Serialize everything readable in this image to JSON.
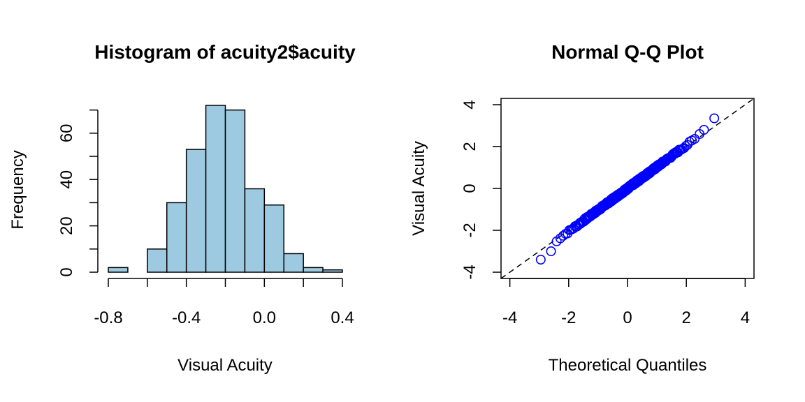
{
  "chart_data": [
    {
      "type": "bar",
      "title": "Histogram of acuity2$acuity",
      "xlabel": "Visual Acuity",
      "ylabel": "Frequency",
      "bin_edges": [
        -0.8,
        -0.7,
        -0.6,
        -0.5,
        -0.4,
        -0.3,
        -0.2,
        -0.1,
        0.0,
        0.1,
        0.2,
        0.3,
        0.4
      ],
      "values": [
        2,
        0,
        10,
        30,
        53,
        72,
        70,
        36,
        29,
        8,
        2,
        1
      ],
      "xlim": [
        -0.8,
        0.4
      ],
      "ylim": [
        0,
        72
      ],
      "x_ticks": [
        -0.8,
        -0.4,
        0.0,
        0.4
      ],
      "x_tick_labels": [
        "-0.8",
        "-0.4",
        "0.0",
        "0.4"
      ],
      "y_ticks": [
        0,
        20,
        40,
        60
      ],
      "y_tick_labels": [
        "0",
        "20",
        "40",
        "60"
      ],
      "bar_color": "#9ecae1",
      "grid": false
    },
    {
      "type": "scatter",
      "title": "Normal Q-Q Plot",
      "xlabel": "Theoretical Quantiles",
      "ylabel": "Visual Acuity",
      "xlim": [
        -4.3,
        4.3
      ],
      "ylim": [
        -4.3,
        4.3
      ],
      "x_ticks": [
        -4,
        -2,
        0,
        2,
        4
      ],
      "x_tick_labels": [
        "-4",
        "-2",
        "0",
        "2",
        "4"
      ],
      "y_ticks": [
        -4,
        -2,
        0,
        2,
        4
      ],
      "y_tick_labels": [
        "-4",
        "-2",
        "0",
        "2",
        "4"
      ],
      "point_color": "#0000ff",
      "reference_line": {
        "slope": 1,
        "intercept": 0,
        "style": "dashed",
        "color": "#000000"
      },
      "sample_size": 313,
      "extreme_points": [
        {
          "x": -2.95,
          "y": -3.4
        },
        {
          "x": -2.6,
          "y": -3.0
        },
        {
          "x": 2.95,
          "y": 3.35
        },
        {
          "x": 2.6,
          "y": 2.8
        },
        {
          "x": 2.45,
          "y": 2.6
        }
      ],
      "grid": false
    }
  ]
}
